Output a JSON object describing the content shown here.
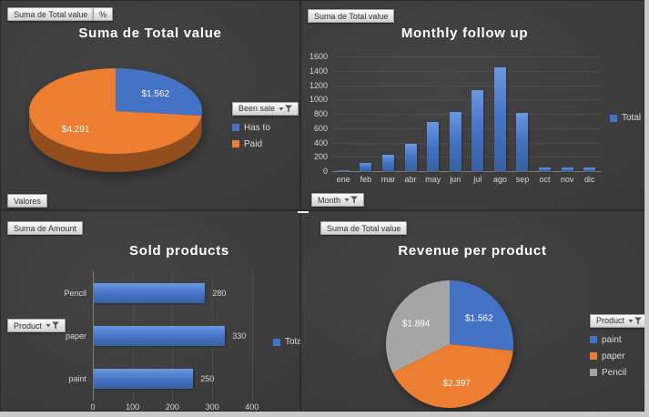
{
  "chart_data": [
    {
      "id": "total-value-pie",
      "type": "pie",
      "style": "3d",
      "title": "Suma de Total value",
      "labels": [
        "Has to",
        "Paid"
      ],
      "values": [
        1562,
        4291
      ],
      "data_labels": [
        "$1.562",
        "$4.291"
      ],
      "colors": [
        "#4472C4",
        "#ED7D31"
      ],
      "legend_title": "Been sale",
      "legend_position": "right",
      "field_buttons": [
        "Suma de Total value",
        "%",
        "Valores"
      ]
    },
    {
      "id": "monthly-follow-up",
      "type": "bar",
      "orientation": "vertical",
      "title": "Monthly follow up",
      "categories": [
        "ene",
        "feb",
        "mar",
        "abr",
        "may",
        "jun",
        "jul",
        "ago",
        "sep",
        "oct",
        "nov",
        "dic"
      ],
      "series": [
        {
          "name": "Total",
          "color": "#4472C4",
          "values": [
            15,
            120,
            230,
            380,
            690,
            830,
            1130,
            1450,
            810,
            55,
            55,
            45
          ]
        }
      ],
      "ylim": [
        0,
        1600
      ],
      "ytick_step": 200,
      "grid": true,
      "legend_position": "right",
      "field_buttons": [
        "Suma de Total value",
        "Month"
      ]
    },
    {
      "id": "sold-products",
      "type": "bar",
      "orientation": "horizontal",
      "title": "Sold products",
      "categories": [
        "Pencil",
        "paper",
        "paint"
      ],
      "series": [
        {
          "name": "Total",
          "color": "#4472C4",
          "values": [
            280,
            330,
            250
          ]
        }
      ],
      "data_labels": [
        "280",
        "330",
        "250"
      ],
      "xlim": [
        0,
        430
      ],
      "xticks": [
        0,
        100,
        200,
        300,
        400
      ],
      "grid": true,
      "legend_position": "right",
      "field_buttons": [
        "Suma de Amount",
        "Product"
      ]
    },
    {
      "id": "revenue-per-product",
      "type": "pie",
      "style": "flat",
      "title": "Revenue per product",
      "labels": [
        "paint",
        "paper",
        "Pencil"
      ],
      "values": [
        1562,
        2397,
        1894
      ],
      "data_labels": [
        "$1.562",
        "$2.397",
        "$1.894"
      ],
      "colors": [
        "#4472C4",
        "#ED7D31",
        "#A5A5A5"
      ],
      "legend_title": "Product",
      "legend_position": "right",
      "field_buttons": [
        "Suma de Total value",
        "Product"
      ]
    }
  ]
}
